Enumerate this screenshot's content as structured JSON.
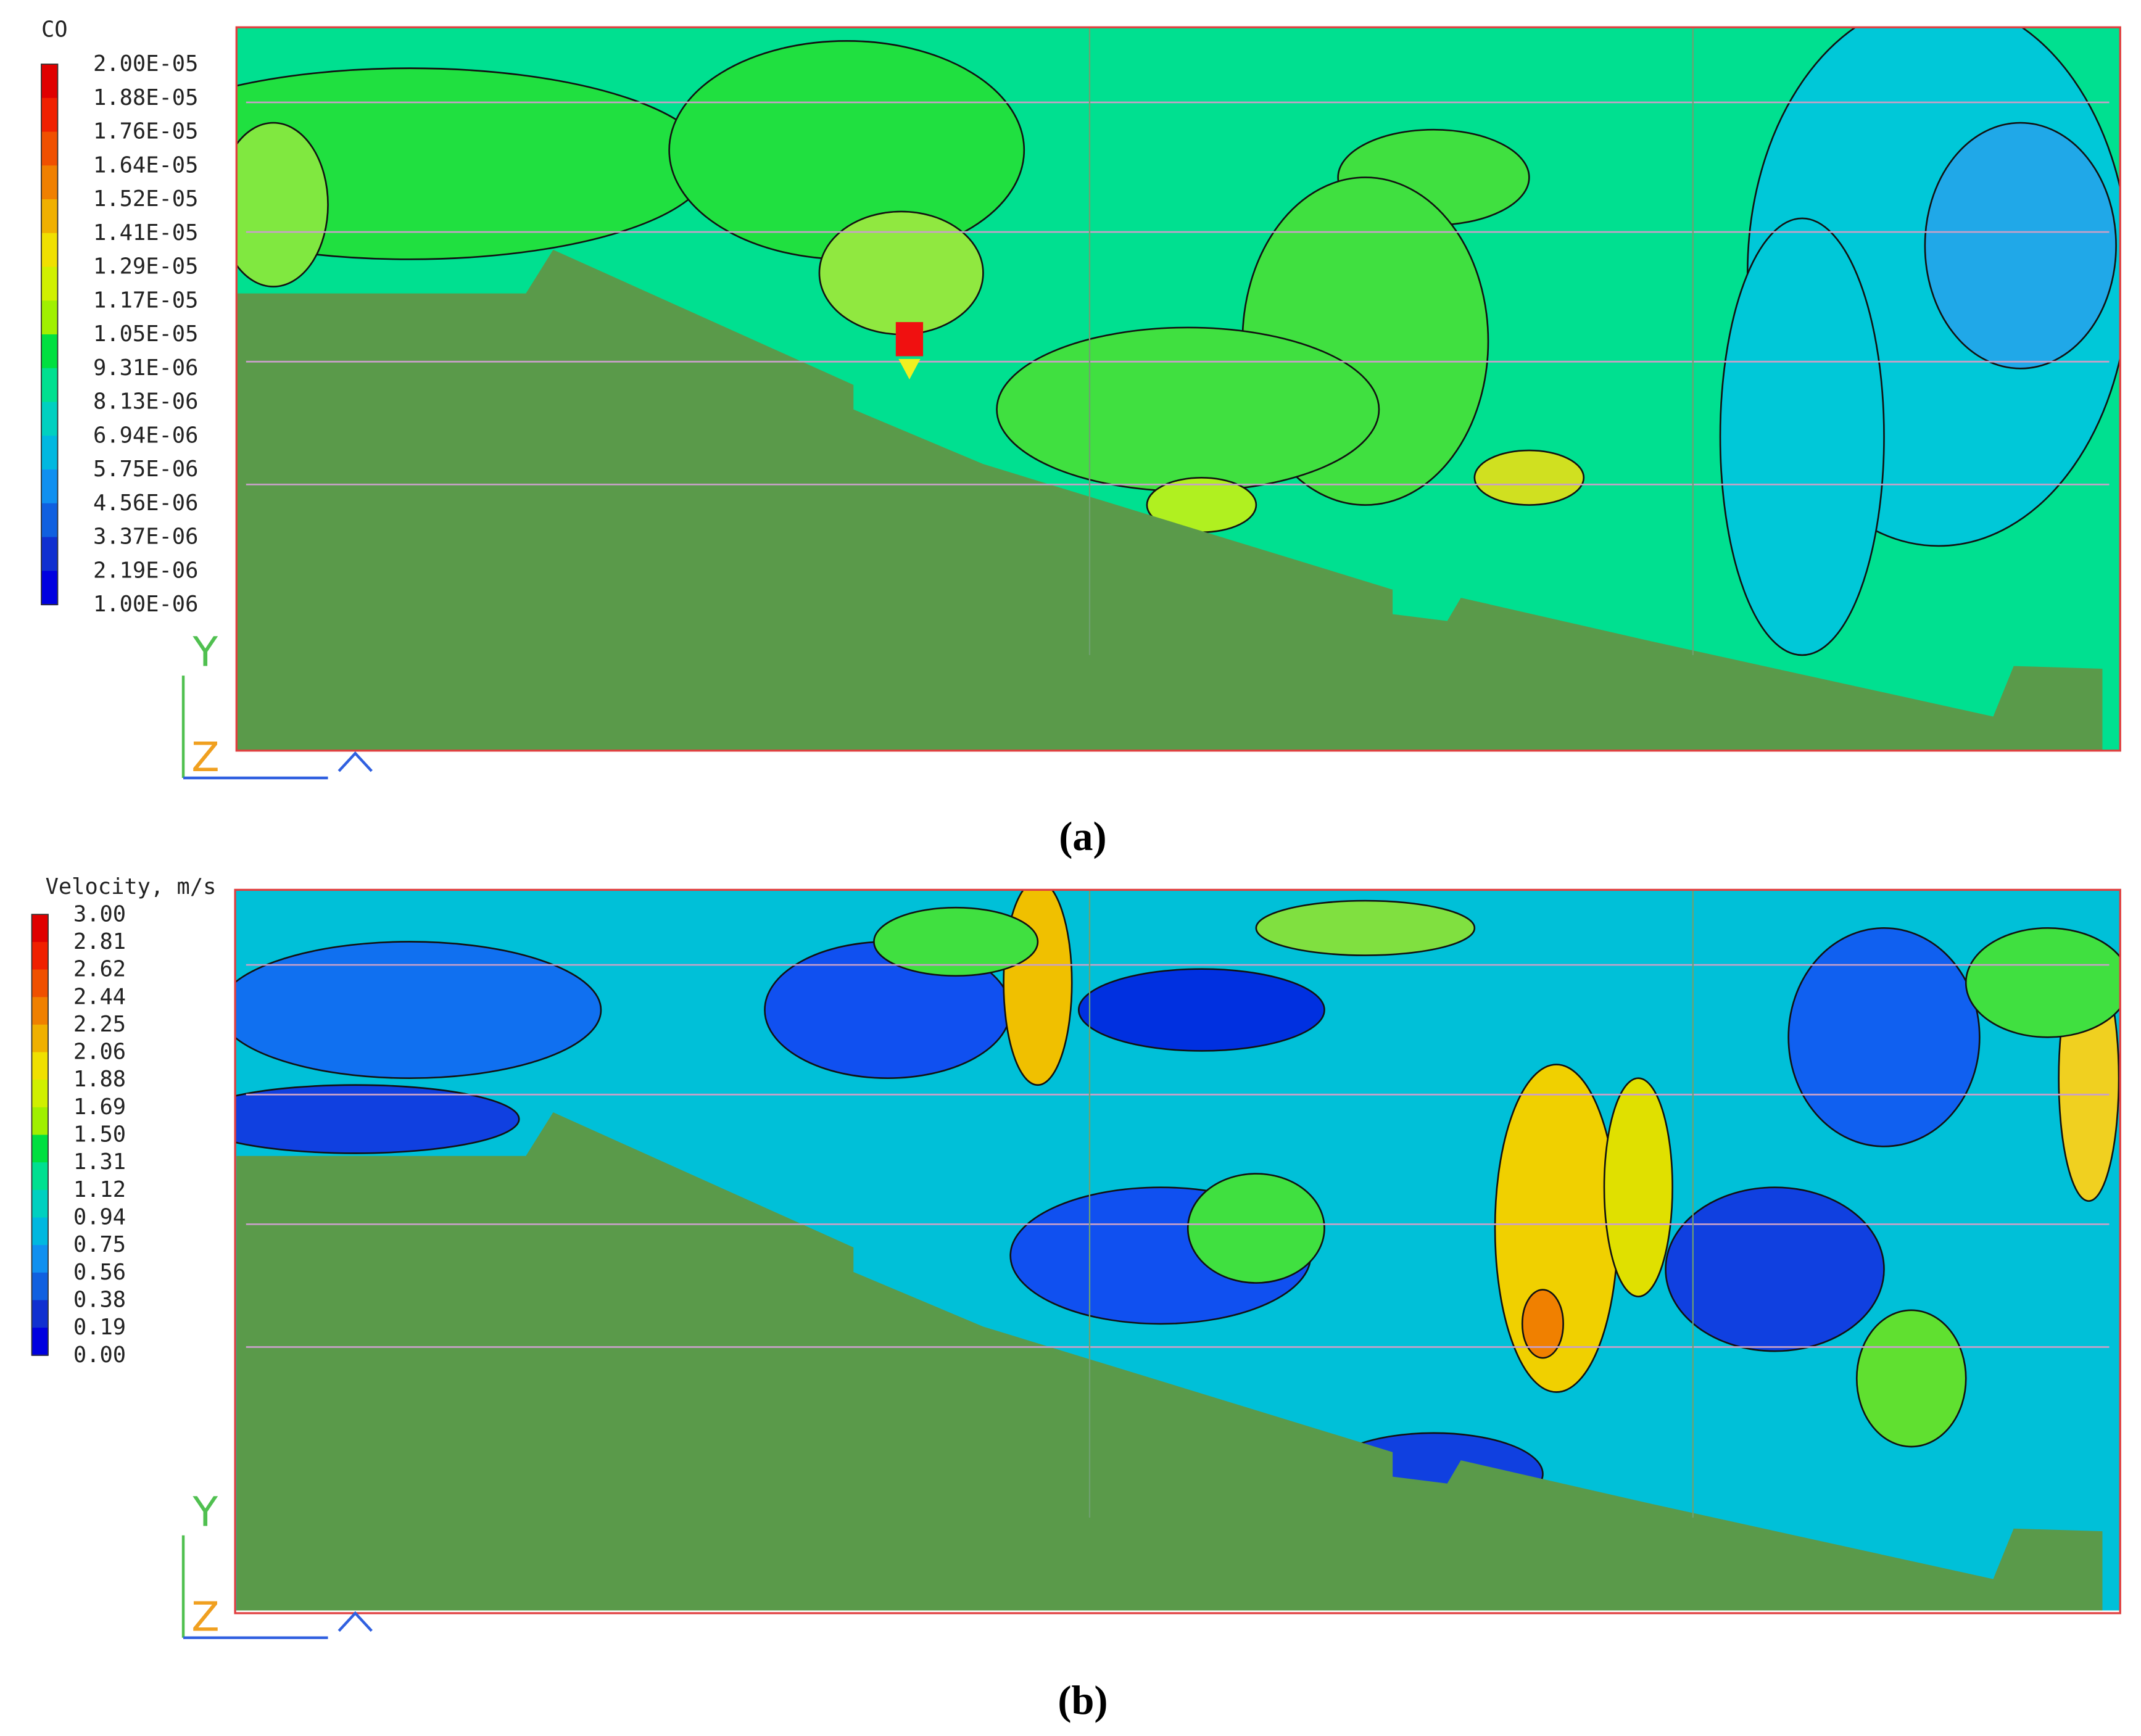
{
  "panels": [
    {
      "legend_title": "CO",
      "legend_labels": [
        "2.00E-05",
        "1.88E-05",
        "1.76E-05",
        "1.64E-05",
        "1.52E-05",
        "1.41E-05",
        "1.29E-05",
        "1.17E-05",
        "1.05E-05",
        "9.31E-06",
        "8.13E-06",
        "6.94E-06",
        "5.75E-06",
        "4.56E-06",
        "3.37E-06",
        "2.19E-06",
        "1.00E-06"
      ],
      "axis_y": "Y",
      "axis_z": "Z",
      "caption": "(a)"
    },
    {
      "legend_title": "Velocity, m/s",
      "legend_labels": [
        "3.00",
        "2.81",
        "2.62",
        "2.44",
        "2.25",
        "2.06",
        "1.88",
        "1.69",
        "1.50",
        "1.31",
        "1.12",
        "0.94",
        "0.75",
        "0.56",
        "0.38",
        "0.19",
        "0.00"
      ],
      "axis_y": "Y",
      "axis_z": "Z",
      "caption": "(b)"
    }
  ]
}
